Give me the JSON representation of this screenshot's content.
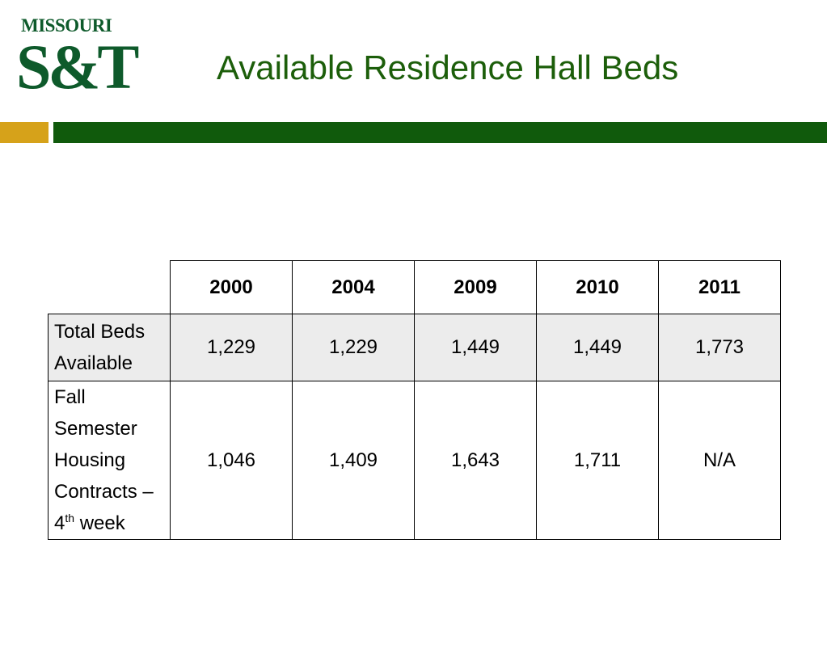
{
  "logo": {
    "word": "MISSOURI",
    "mark": "S&T"
  },
  "slide": {
    "title": "Available Residence Hall Beds"
  },
  "table": {
    "columns": [
      "2000",
      "2004",
      "2009",
      "2010",
      "2011"
    ],
    "rows": [
      {
        "label": "Total Beds Available",
        "values": [
          "1,229",
          "1,229",
          "1,449",
          "1,449",
          "1,773"
        ]
      },
      {
        "label_main": "Fall Semester Housing Contracts – 4",
        "label_sup": "th",
        "label_tail": " week",
        "values": [
          "1,046",
          "1,409",
          "1,643",
          "1,711",
          "N/A"
        ]
      }
    ]
  },
  "colors": {
    "brand_green": "#105a0c",
    "brand_gold": "#d6a21a",
    "title_green": "#1c5e0a",
    "row_shade": "#ececec"
  }
}
